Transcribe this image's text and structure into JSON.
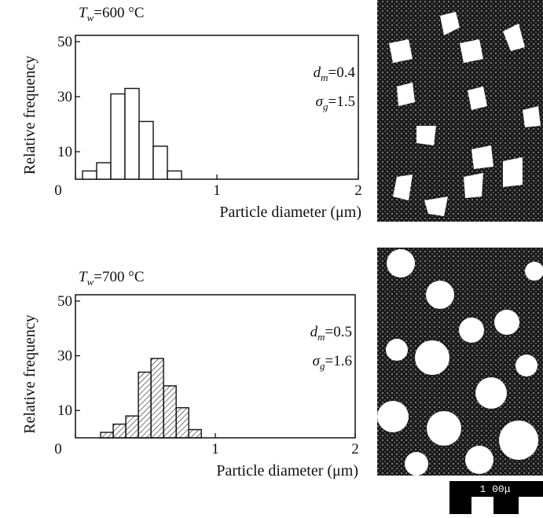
{
  "charts": [
    {
      "type": "histogram",
      "annotations": [
        {
          "symbol": "T",
          "sub": "w",
          "text": "=600 °C"
        },
        {
          "symbol": "d",
          "sub": "m",
          "text": "=0.4"
        },
        {
          "symbol": "σ",
          "sub": "g",
          "text": "=1.5"
        }
      ],
      "y_label": "Relative frequency",
      "x_label": "Particle diameter  (μm)",
      "bins": [
        0.05,
        0.15,
        0.25,
        0.35,
        0.45,
        0.55,
        0.65,
        0.75
      ],
      "values": [
        3,
        6,
        31,
        33,
        21,
        12,
        3
      ],
      "xlim": [
        0,
        2
      ],
      "xticks": [
        0,
        1,
        2
      ],
      "ylim": [
        0,
        50
      ],
      "yticks": [
        10,
        30,
        50
      ],
      "hatch": false
    },
    {
      "type": "histogram",
      "annotations": [
        {
          "symbol": "T",
          "sub": "w",
          "text": "=700 °C"
        },
        {
          "symbol": "d",
          "sub": "m",
          "text": "=0.5"
        },
        {
          "symbol": "σ",
          "sub": "g",
          "text": "=1.6"
        }
      ],
      "y_label": "Relative frequency",
      "x_label": "Particle diameter  (μm)",
      "bins": [
        0.18,
        0.27,
        0.36,
        0.45,
        0.54,
        0.63,
        0.72,
        0.81,
        0.9
      ],
      "values": [
        2,
        5,
        8,
        24,
        29,
        19,
        11,
        3
      ],
      "xlim": [
        0,
        2
      ],
      "xticks": [
        0,
        1,
        2
      ],
      "ylim": [
        0,
        50
      ],
      "yticks": [
        10,
        30,
        50
      ],
      "hatch": true
    }
  ],
  "scale_bar": "1 00μ"
}
